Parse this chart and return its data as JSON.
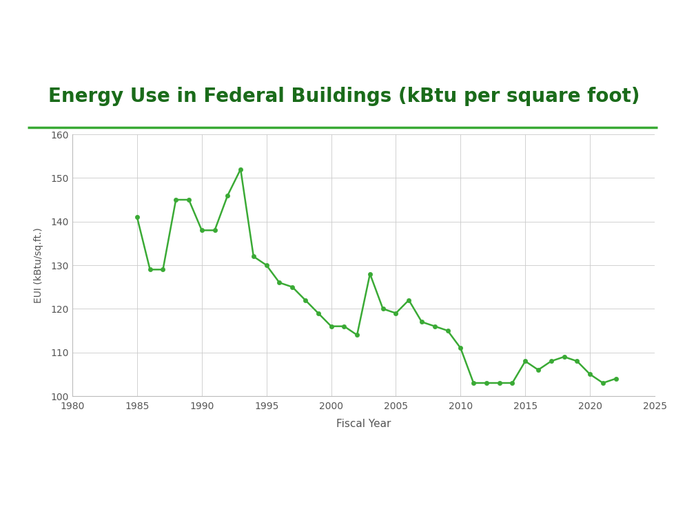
{
  "title": "Energy Use in Federal Buildings (kBtu per square foot)",
  "xlabel": "Fiscal Year",
  "ylabel": "EUI (kBtu/sq.ft.)",
  "line_color": "#3aaa35",
  "marker_color": "#3aaa35",
  "title_color": "#1a6b1a",
  "title_line_color": "#3aaa35",
  "footer_bar_color": "#3d9e25",
  "background_color": "#ffffff",
  "grid_color": "#cccccc",
  "xlim": [
    1980,
    2025
  ],
  "ylim": [
    100,
    160
  ],
  "xticks": [
    1980,
    1985,
    1990,
    1995,
    2000,
    2005,
    2010,
    2015,
    2020,
    2025
  ],
  "yticks": [
    100,
    110,
    120,
    130,
    140,
    150,
    160
  ],
  "years": [
    1985,
    1986,
    1987,
    1988,
    1989,
    1990,
    1991,
    1992,
    1993,
    1994,
    1995,
    1996,
    1997,
    1998,
    1999,
    2000,
    2001,
    2002,
    2003,
    2004,
    2005,
    2006,
    2007,
    2008,
    2009,
    2010,
    2011,
    2012,
    2013,
    2014,
    2015,
    2016,
    2017,
    2018,
    2019,
    2020,
    2021,
    2022
  ],
  "values": [
    141,
    129,
    129,
    145,
    145,
    138,
    138,
    146,
    152,
    132,
    130,
    126,
    125,
    122,
    119,
    116,
    116,
    114,
    128,
    120,
    119,
    122,
    117,
    116,
    115,
    111,
    103,
    103,
    103,
    103,
    108,
    106,
    108,
    109,
    108,
    105,
    103,
    104
  ]
}
